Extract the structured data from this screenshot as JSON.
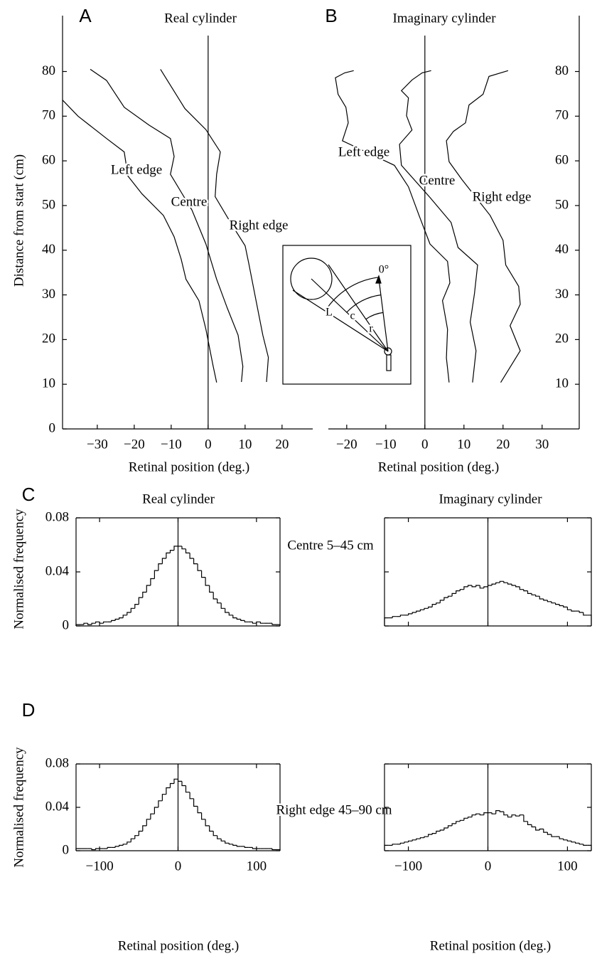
{
  "chart_data": [
    {
      "type": "line",
      "panel_label": "A",
      "title": "Real cylinder",
      "xlabel": "Retinal position (deg.)",
      "ylabel": "Distance from start (cm)",
      "xlim": [
        -39.4,
        28.3
      ],
      "ylim": [
        0,
        92.5
      ],
      "xticks": [
        {
          "value": -30,
          "label": "−30"
        },
        {
          "value": -20,
          "label": "−20"
        },
        {
          "value": -10,
          "label": "−10"
        },
        0,
        10,
        20
      ],
      "yticks": [
        0,
        10,
        20,
        30,
        40,
        50,
        60,
        70,
        80
      ],
      "vline": 0,
      "series": [
        {
          "name": "Left edge",
          "color": "#000000",
          "x": [
            -39.4,
            -35.2,
            -27.5,
            -22.7,
            -21.7,
            -17.9,
            -12.1,
            -9.2,
            -7.3,
            -6,
            -2.5,
            -0.6,
            1.3,
            2.3
          ],
          "values": [
            73.6,
            70,
            65,
            62,
            56.6,
            52.6,
            47.8,
            43,
            38,
            33.5,
            28.7,
            22.3,
            14.3,
            10.4
          ]
        },
        {
          "name": "Centre",
          "color": "#000000",
          "x": [
            -31.9,
            -27.5,
            -22.7,
            -16,
            -10.2,
            -9.2,
            -10.2,
            -4.4,
            -0.6,
            2.3,
            5.2,
            8.1,
            9.4,
            9
          ],
          "values": [
            80.5,
            78,
            72,
            68,
            65,
            61,
            57,
            49,
            41.4,
            33.5,
            27,
            21,
            14,
            10.5
          ]
        },
        {
          "name": "Right edge",
          "color": "#000000",
          "x": [
            -12.9,
            -6.3,
            -0.6,
            3.3,
            2.3,
            1.9,
            6.2,
            10,
            11,
            12.9,
            14.8,
            16.3,
            15.8
          ],
          "values": [
            80.5,
            71.7,
            67,
            62,
            57,
            52,
            46,
            41,
            37,
            29,
            21,
            16,
            10.5
          ]
        }
      ]
    },
    {
      "type": "line",
      "panel_label": "B",
      "title": "Imaginary cylinder",
      "xlabel": "Retinal position (deg.)",
      "xlim": [
        -24.7,
        39.5
      ],
      "ylim": [
        0,
        92.5
      ],
      "xticks": [
        {
          "value": -20,
          "label": "−20"
        },
        {
          "value": -10,
          "label": "−10"
        },
        0,
        10,
        20,
        30
      ],
      "yticks": [
        10,
        20,
        30,
        40,
        50,
        60,
        70,
        80
      ],
      "vline": 0,
      "inset_labels": [
        "0°",
        "L",
        "c",
        "r"
      ],
      "series": [
        {
          "name": "Left edge",
          "color": "#000000",
          "x": [
            -18.2,
            -20.5,
            -22.9,
            -22.2,
            -20.2,
            -19.6,
            -21.1,
            -7.8,
            -4.2,
            -1.5,
            1.3,
            5.8,
            6.4,
            4.5,
            5.8,
            5.5,
            6.2
          ],
          "values": [
            80.2,
            79.7,
            78.6,
            74.9,
            72,
            68.5,
            64.5,
            59,
            54.2,
            47.8,
            41.4,
            37.5,
            32.7,
            28.7,
            22.3,
            15.9,
            10.4
          ]
        },
        {
          "name": "Centre",
          "color": "#000000",
          "x": [
            1.6,
            -0.7,
            -3.3,
            -6,
            -4.2,
            -4.7,
            -3.3,
            -6.5,
            -6,
            1.3,
            6.7,
            8.5,
            13.5,
            12.7,
            11.6,
            13.1,
            12.2
          ],
          "values": [
            80.2,
            79.7,
            78.1,
            75.7,
            74.1,
            70.1,
            66.9,
            63.7,
            59,
            51.8,
            46.2,
            40.6,
            36.7,
            30.3,
            23.9,
            17.5,
            10.4
          ]
        },
        {
          "name": "Right edge",
          "color": "#000000",
          "x": [
            21.3,
            16.4,
            14.9,
            11.3,
            10.4,
            7.3,
            5.5,
            6.2,
            9.5,
            16.7,
            20,
            20.7,
            24,
            24.4,
            21.8,
            24.4,
            19.4
          ],
          "values": [
            80.2,
            78.9,
            74.9,
            72.5,
            68.5,
            66.6,
            64.5,
            59.8,
            55.8,
            47.8,
            42.2,
            36.7,
            31.9,
            27.9,
            23.1,
            17.5,
            10.4
          ]
        }
      ]
    },
    {
      "type": "histogram",
      "panel_label": "C",
      "title": "Real cylinder",
      "ylabel": "Normalised frequency",
      "annotation": "Centre 5–45 cm",
      "xlim": [
        -130,
        130
      ],
      "ylim": [
        0,
        0.08
      ],
      "xticks": [
        {
          "value": -100,
          "label": "−100"
        },
        0,
        100
      ],
      "xtick_labels": false,
      "yticks": [
        0,
        0.04,
        0.08
      ],
      "vline": 0,
      "color": "#000000",
      "bins": [
        -130,
        -125,
        -120,
        -115,
        -110,
        -105,
        -100,
        -95,
        -90,
        -85,
        -80,
        -75,
        -70,
        -65,
        -60,
        -55,
        -50,
        -45,
        -40,
        -35,
        -30,
        -25,
        -20,
        -15,
        -10,
        -5,
        0,
        5,
        10,
        15,
        20,
        25,
        30,
        35,
        40,
        45,
        50,
        55,
        60,
        65,
        70,
        75,
        80,
        85,
        90,
        95,
        100,
        105,
        110,
        115,
        120,
        125,
        130
      ],
      "values": [
        0.001,
        0.001,
        0.002,
        0.001,
        0.002,
        0.003,
        0.002,
        0.003,
        0.003,
        0.004,
        0.005,
        0.006,
        0.008,
        0.01,
        0.013,
        0.016,
        0.021,
        0.025,
        0.03,
        0.035,
        0.041,
        0.046,
        0.05,
        0.054,
        0.056,
        0.059,
        0.059,
        0.057,
        0.054,
        0.05,
        0.046,
        0.041,
        0.036,
        0.03,
        0.025,
        0.02,
        0.017,
        0.013,
        0.01,
        0.008,
        0.006,
        0.005,
        0.004,
        0.003,
        0.003,
        0.002,
        0.003,
        0.002,
        0.002,
        0.002,
        0.001,
        0.001
      ]
    },
    {
      "type": "histogram",
      "title": "Imaginary cylinder",
      "xlim": [
        -130,
        130
      ],
      "ylim": [
        0,
        0.08
      ],
      "xticks": [
        {
          "value": -100,
          "label": "−100"
        },
        0,
        100
      ],
      "xtick_labels": false,
      "yticks": [
        0,
        0.04,
        0.08
      ],
      "ytick_labels": false,
      "vline": 0,
      "color": "#000000",
      "bins": [
        -130,
        -125,
        -120,
        -115,
        -110,
        -105,
        -100,
        -95,
        -90,
        -85,
        -80,
        -75,
        -70,
        -65,
        -60,
        -55,
        -50,
        -45,
        -40,
        -35,
        -30,
        -25,
        -20,
        -15,
        -10,
        -5,
        0,
        5,
        10,
        15,
        20,
        25,
        30,
        35,
        40,
        45,
        50,
        55,
        60,
        65,
        70,
        75,
        80,
        85,
        90,
        95,
        100,
        105,
        110,
        115,
        120,
        125,
        130
      ],
      "values": [
        0.006,
        0.006,
        0.007,
        0.007,
        0.008,
        0.008,
        0.009,
        0.01,
        0.011,
        0.012,
        0.013,
        0.014,
        0.016,
        0.017,
        0.019,
        0.021,
        0.022,
        0.024,
        0.026,
        0.027,
        0.029,
        0.03,
        0.029,
        0.03,
        0.028,
        0.029,
        0.03,
        0.031,
        0.032,
        0.033,
        0.032,
        0.031,
        0.03,
        0.029,
        0.027,
        0.026,
        0.024,
        0.023,
        0.022,
        0.02,
        0.019,
        0.018,
        0.017,
        0.016,
        0.015,
        0.014,
        0.012,
        0.011,
        0.011,
        0.01,
        0.008,
        0.008
      ]
    },
    {
      "type": "histogram",
      "panel_label": "D",
      "ylabel": "Normalised frequency",
      "xlabel": "Retinal position (deg.)",
      "annotation": "Right edge 45–90 cm",
      "xlim": [
        -130,
        130
      ],
      "ylim": [
        0,
        0.08
      ],
      "xticks": [
        {
          "value": -100,
          "label": "−100"
        },
        0,
        100
      ],
      "yticks": [
        0,
        0.04,
        0.08
      ],
      "vline": 0,
      "color": "#000000",
      "bins": [
        -130,
        -125,
        -120,
        -115,
        -110,
        -105,
        -100,
        -95,
        -90,
        -85,
        -80,
        -75,
        -70,
        -65,
        -60,
        -55,
        -50,
        -45,
        -40,
        -35,
        -30,
        -25,
        -20,
        -15,
        -10,
        -5,
        0,
        5,
        10,
        15,
        20,
        25,
        30,
        35,
        40,
        45,
        50,
        55,
        60,
        65,
        70,
        75,
        80,
        85,
        90,
        95,
        100,
        105,
        110,
        115,
        120,
        125,
        130
      ],
      "values": [
        0.002,
        0.002,
        0.002,
        0.002,
        0.001,
        0.002,
        0.002,
        0.002,
        0.003,
        0.003,
        0.004,
        0.005,
        0.006,
        0.008,
        0.011,
        0.014,
        0.018,
        0.023,
        0.029,
        0.034,
        0.04,
        0.046,
        0.052,
        0.058,
        0.062,
        0.066,
        0.064,
        0.06,
        0.054,
        0.048,
        0.041,
        0.035,
        0.029,
        0.023,
        0.018,
        0.014,
        0.011,
        0.009,
        0.007,
        0.006,
        0.005,
        0.004,
        0.004,
        0.003,
        0.003,
        0.002,
        0.002,
        0.002,
        0.002,
        0.002,
        0.001,
        0.001
      ]
    },
    {
      "type": "histogram",
      "xlabel": "Retinal position (deg.)",
      "xlim": [
        -130,
        130
      ],
      "ylim": [
        0,
        0.08
      ],
      "xticks": [
        {
          "value": -100,
          "label": "−100"
        },
        0,
        100
      ],
      "yticks": [
        0,
        0.04,
        0.08
      ],
      "ytick_labels": false,
      "vline": 0,
      "color": "#000000",
      "bins": [
        -130,
        -125,
        -120,
        -115,
        -110,
        -105,
        -100,
        -95,
        -90,
        -85,
        -80,
        -75,
        -70,
        -65,
        -60,
        -55,
        -50,
        -45,
        -40,
        -35,
        -30,
        -25,
        -20,
        -15,
        -10,
        -5,
        0,
        5,
        10,
        15,
        20,
        25,
        30,
        35,
        40,
        45,
        50,
        55,
        60,
        65,
        70,
        75,
        80,
        85,
        90,
        95,
        100,
        105,
        110,
        115,
        120,
        125,
        130
      ],
      "values": [
        0.005,
        0.005,
        0.006,
        0.006,
        0.007,
        0.008,
        0.009,
        0.01,
        0.011,
        0.012,
        0.013,
        0.015,
        0.016,
        0.018,
        0.019,
        0.021,
        0.023,
        0.025,
        0.027,
        0.028,
        0.03,
        0.031,
        0.033,
        0.034,
        0.033,
        0.035,
        0.035,
        0.034,
        0.037,
        0.036,
        0.033,
        0.031,
        0.033,
        0.032,
        0.033,
        0.027,
        0.024,
        0.022,
        0.019,
        0.02,
        0.017,
        0.015,
        0.013,
        0.013,
        0.011,
        0.01,
        0.009,
        0.008,
        0.007,
        0.006,
        0.005,
        0.005
      ]
    }
  ]
}
